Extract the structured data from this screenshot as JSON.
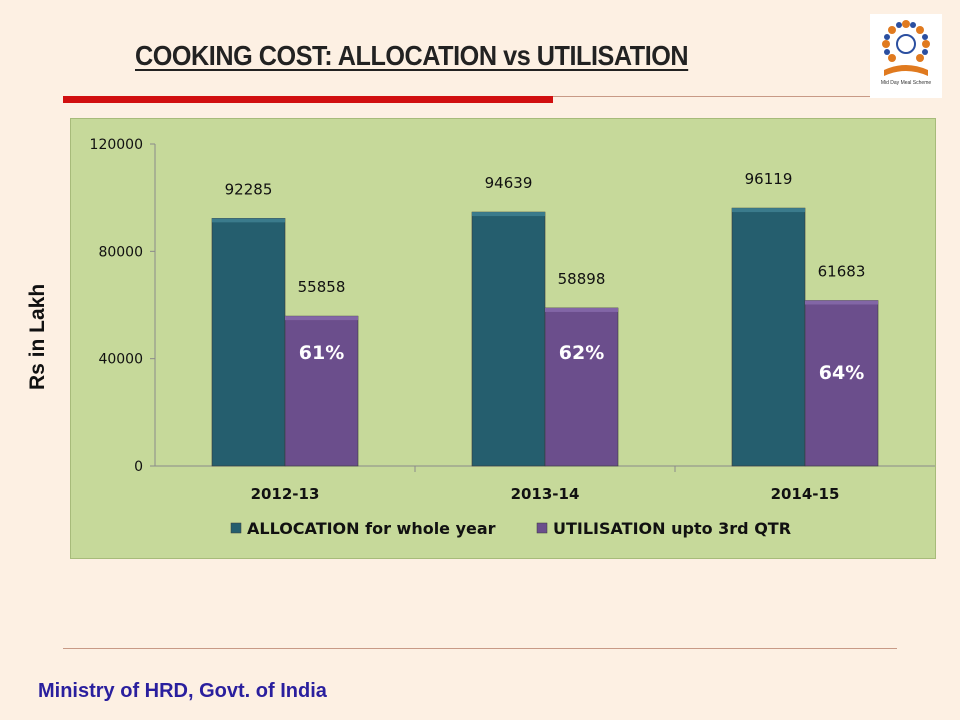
{
  "title": "COOKING COST: ALLOCATION vs UTILISATION",
  "footer": "Ministry of HRD, Govt. of India",
  "logo": {
    "text": "Mid Day Meal Scheme",
    "icon": "mid-day-meal-logo"
  },
  "colors": {
    "allocation": "#255e6e",
    "utilisation": "#6b4e8c",
    "plot_bg": "#c6d99a",
    "accent": "#d10f0f",
    "footer": "#2a1f9e"
  },
  "chart_data": {
    "type": "bar",
    "ylabel": "Rs in Lakh",
    "xlabel": "",
    "ylim": [
      0,
      120000
    ],
    "yticks": [
      "0",
      "40000",
      "80000",
      "120000"
    ],
    "ytick_values": [
      0,
      40000,
      80000,
      120000
    ],
    "grid": false,
    "legend_position": "bottom",
    "categories": [
      "2012-13",
      "2013-14",
      "2014-15"
    ],
    "series": [
      {
        "name": "ALLOCATION for whole year",
        "values": [
          92285,
          94639,
          96119
        ],
        "labels": [
          "92285",
          "94639",
          "96119"
        ]
      },
      {
        "name": "UTILISATION upto 3rd QTR",
        "values": [
          55858,
          58898,
          61683
        ],
        "labels": [
          "55858",
          "58898",
          "61683"
        ]
      }
    ],
    "annotations": [
      "61%",
      "62%",
      "64%"
    ]
  }
}
